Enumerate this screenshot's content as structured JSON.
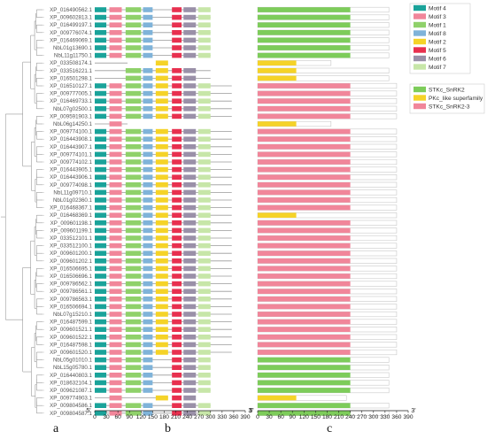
{
  "genes": [
    {
      "name": "XP_016490562.1",
      "motifs": [
        1,
        3,
        4,
        5,
        6,
        7,
        8
      ],
      "domains": [
        "STKc_SnRK2"
      ]
    },
    {
      "name": "XP_009602813.1",
      "motifs": [
        1,
        3,
        4,
        5,
        6,
        7,
        8
      ],
      "domains": [
        "STKc_SnRK2"
      ]
    },
    {
      "name": "XP_016499197.1",
      "motifs": [
        1,
        3,
        4,
        5,
        6,
        7,
        8
      ],
      "domains": [
        "STKc_SnRK2"
      ]
    },
    {
      "name": "XP_009776074.1",
      "motifs": [
        1,
        3,
        4,
        5,
        6,
        7,
        8
      ],
      "domains": [
        "STKc_SnRK2"
      ]
    },
    {
      "name": "XP_016469069.1",
      "motifs": [
        1,
        3,
        4,
        5,
        6,
        7,
        8
      ],
      "domains": [
        "STKc_SnRK2"
      ]
    },
    {
      "name": "NbL01g13690.1",
      "motifs": [
        1,
        3,
        4,
        5,
        6,
        7,
        8
      ],
      "domains": [
        "STKc_SnRK2"
      ]
    },
    {
      "name": "NbL11g11750.1",
      "motifs": [
        1,
        3,
        4,
        5,
        6,
        7,
        8
      ],
      "domains": [
        "STKc_SnRK2"
      ]
    },
    {
      "name": "XP_033508174.1",
      "motifs": [
        2
      ],
      "domains": [
        "PKc_like superfamily"
      ]
    },
    {
      "name": "XP_033516221.1",
      "motifs": [
        1,
        2,
        5,
        6,
        8
      ],
      "domains": [
        "PKc_like superfamily"
      ]
    },
    {
      "name": "XP_016501298.1",
      "motifs": [
        1,
        2,
        5,
        6,
        8
      ],
      "domains": [
        "PKc_like superfamily"
      ]
    },
    {
      "name": "XP_016510127.1",
      "motifs": [
        1,
        2,
        3,
        4,
        5,
        6,
        7,
        8
      ],
      "domains": [
        "STKc_SnRK2-3"
      ]
    },
    {
      "name": "XP_009777005.1",
      "motifs": [
        1,
        2,
        3,
        4,
        5,
        6,
        7,
        8
      ],
      "domains": [
        "STKc_SnRK2-3"
      ]
    },
    {
      "name": "XP_016469733.1",
      "motifs": [
        1,
        2,
        3,
        4,
        5,
        6,
        7,
        8
      ],
      "domains": [
        "STKc_SnRK2-3"
      ]
    },
    {
      "name": "NbL07g02500.1",
      "motifs": [
        1,
        2,
        3,
        4,
        5,
        6,
        7,
        8
      ],
      "domains": [
        "STKc_SnRK2-3"
      ]
    },
    {
      "name": "XP_009591903.1",
      "motifs": [
        1,
        2,
        3,
        4,
        5,
        6,
        7,
        8
      ],
      "domains": [
        "STKc_SnRK2-3"
      ]
    },
    {
      "name": "NbL06g14250.1",
      "motifs": [
        3
      ],
      "domains": [
        "PKc_like superfamily"
      ]
    },
    {
      "name": "XP_009774100.1",
      "motifs": [
        1,
        2,
        3,
        4,
        5,
        6,
        7,
        8
      ],
      "domains": [
        "STKc_SnRK2-3"
      ]
    },
    {
      "name": "XP_016443908.1",
      "motifs": [
        1,
        2,
        3,
        4,
        5,
        6,
        7,
        8
      ],
      "domains": [
        "STKc_SnRK2-3"
      ]
    },
    {
      "name": "XP_016443907.1",
      "motifs": [
        1,
        2,
        3,
        4,
        5,
        6,
        7,
        8
      ],
      "domains": [
        "STKc_SnRK2-3"
      ]
    },
    {
      "name": "XP_009774101.1",
      "motifs": [
        1,
        2,
        3,
        4,
        5,
        6,
        7,
        8
      ],
      "domains": [
        "STKc_SnRK2-3"
      ]
    },
    {
      "name": "XP_009774102.1",
      "motifs": [
        1,
        2,
        3,
        4,
        5,
        6,
        7,
        8
      ],
      "domains": [
        "STKc_SnRK2-3"
      ]
    },
    {
      "name": "XP_016443905.1",
      "motifs": [
        1,
        2,
        3,
        4,
        5,
        6,
        7,
        8
      ],
      "domains": [
        "STKc_SnRK2-3"
      ]
    },
    {
      "name": "XP_016443906.1",
      "motifs": [
        1,
        2,
        3,
        4,
        5,
        6,
        7,
        8
      ],
      "domains": [
        "STKc_SnRK2-3"
      ]
    },
    {
      "name": "XP_009774098.1",
      "motifs": [
        1,
        2,
        3,
        4,
        5,
        6,
        7,
        8
      ],
      "domains": [
        "STKc_SnRK2-3"
      ]
    },
    {
      "name": "NbL11g09710.1",
      "motifs": [
        1,
        2,
        3,
        4,
        5,
        6,
        7,
        8
      ],
      "domains": [
        "STKc_SnRK2-3"
      ]
    },
    {
      "name": "NbL01g02360.1",
      "motifs": [
        1,
        2,
        3,
        4,
        5,
        6,
        7,
        8
      ],
      "domains": [
        "STKc_SnRK2-3"
      ]
    },
    {
      "name": "XP_016468367.1",
      "motifs": [
        1,
        2,
        3,
        4,
        5,
        6,
        7,
        8
      ],
      "domains": [
        "STKc_SnRK2-3"
      ]
    },
    {
      "name": "XP_016468369.1",
      "motifs": [
        1,
        2,
        3,
        4,
        5,
        6,
        7,
        8
      ],
      "domains": [
        "PKc_like superfamily"
      ]
    },
    {
      "name": "XP_009601198.1",
      "motifs": [
        1,
        2,
        3,
        4,
        5,
        6,
        7,
        8
      ],
      "domains": [
        "STKc_SnRK2-3"
      ]
    },
    {
      "name": "XP_009601199.1",
      "motifs": [
        1,
        2,
        3,
        4,
        5,
        6,
        7,
        8
      ],
      "domains": [
        "STKc_SnRK2-3"
      ]
    },
    {
      "name": "XP_033512101.1",
      "motifs": [
        1,
        2,
        3,
        4,
        5,
        6,
        7,
        8
      ],
      "domains": [
        "STKc_SnRK2-3"
      ]
    },
    {
      "name": "XP_033512100.1",
      "motifs": [
        1,
        2,
        3,
        4,
        5,
        6,
        7,
        8
      ],
      "domains": [
        "STKc_SnRK2-3"
      ]
    },
    {
      "name": "XP_009601200.1",
      "motifs": [
        1,
        2,
        3,
        4,
        5,
        6,
        7,
        8
      ],
      "domains": [
        "STKc_SnRK2-3"
      ]
    },
    {
      "name": "XP_009601202.1",
      "motifs": [
        1,
        2,
        3,
        4,
        5,
        6,
        7,
        8
      ],
      "domains": [
        "STKc_SnRK2-3"
      ]
    },
    {
      "name": "XP_016506695.1",
      "motifs": [
        1,
        2,
        3,
        4,
        5,
        6,
        7,
        8
      ],
      "domains": [
        "STKc_SnRK2-3"
      ]
    },
    {
      "name": "XP_016506696.1",
      "motifs": [
        1,
        2,
        3,
        4,
        5,
        6,
        7,
        8
      ],
      "domains": [
        "STKc_SnRK2-3"
      ]
    },
    {
      "name": "XP_009786562.1",
      "motifs": [
        1,
        2,
        3,
        4,
        5,
        6,
        7,
        8
      ],
      "domains": [
        "STKc_SnRK2-3"
      ]
    },
    {
      "name": "XP_009786561.1",
      "motifs": [
        1,
        2,
        3,
        4,
        5,
        6,
        7,
        8
      ],
      "domains": [
        "STKc_SnRK2-3"
      ]
    },
    {
      "name": "XP_009786563.1",
      "motifs": [
        1,
        2,
        3,
        4,
        5,
        6,
        7,
        8
      ],
      "domains": [
        "STKc_SnRK2-3"
      ]
    },
    {
      "name": "XP_016506694.1",
      "motifs": [
        1,
        2,
        3,
        4,
        5,
        6,
        7,
        8
      ],
      "domains": [
        "STKc_SnRK2-3"
      ]
    },
    {
      "name": "NbL07g15210.1",
      "motifs": [
        1,
        2,
        3,
        4,
        5,
        6,
        7,
        8
      ],
      "domains": [
        "STKc_SnRK2-3"
      ]
    },
    {
      "name": "XP_016487599.1",
      "motifs": [
        1,
        2,
        3,
        4,
        5,
        6,
        7,
        8
      ],
      "domains": [
        "STKc_SnRK2-3"
      ]
    },
    {
      "name": "XP_009601521.1",
      "motifs": [
        1,
        2,
        3,
        4,
        5,
        6,
        7,
        8
      ],
      "domains": [
        "STKc_SnRK2-3"
      ]
    },
    {
      "name": "XP_009601522.1",
      "motifs": [
        1,
        2,
        3,
        4,
        5,
        6,
        7,
        8
      ],
      "domains": [
        "STKc_SnRK2-3"
      ]
    },
    {
      "name": "XP_016487598.1",
      "motifs": [
        1,
        2,
        3,
        4,
        5,
        6,
        7,
        8
      ],
      "domains": [
        "STKc_SnRK2-3"
      ]
    },
    {
      "name": "XP_009601520.1",
      "motifs": [
        1,
        2,
        3,
        4,
        5,
        6,
        7,
        8
      ],
      "domains": [
        "STKc_SnRK2-3"
      ]
    },
    {
      "name": "NbL05g01010.1",
      "motifs": [
        1,
        3,
        4,
        5,
        6,
        7,
        8
      ],
      "domains": [
        "STKc_SnRK2"
      ]
    },
    {
      "name": "NbL15g05780.1",
      "motifs": [
        1,
        3,
        4,
        5,
        6,
        7,
        8
      ],
      "domains": [
        "STKc_SnRK2"
      ]
    },
    {
      "name": "XP_016440803.1",
      "motifs": [
        1,
        3,
        4,
        5,
        6,
        7,
        8
      ],
      "domains": [
        "STKc_SnRK2"
      ]
    },
    {
      "name": "XP_018632104.1",
      "motifs": [
        1,
        3,
        4,
        5,
        6,
        7,
        8
      ],
      "domains": [
        "STKc_SnRK2"
      ]
    },
    {
      "name": "XP_009621087.1",
      "motifs": [
        1,
        3,
        4,
        5,
        6,
        7,
        8
      ],
      "domains": [
        "STKc_SnRK2"
      ]
    },
    {
      "name": "XP_009774903.1",
      "motifs": [
        2,
        3,
        5,
        6
      ],
      "domains": [
        "PKc_like superfamily"
      ]
    },
    {
      "name": "XP_009804586.1",
      "motifs": [
        1,
        3,
        4,
        5,
        6,
        7,
        8
      ],
      "domains": [
        "STKc_SnRK2"
      ]
    },
    {
      "name": "XP_009804587.1",
      "motifs": [
        1,
        3,
        4,
        5,
        6,
        7,
        8
      ],
      "domains": [
        "STKc_SnRK2"
      ]
    }
  ],
  "motif_legend": [
    {
      "label": "Motif 4",
      "color": "#1aa39a"
    },
    {
      "label": "Motif 3",
      "color": "#f1869a"
    },
    {
      "label": "Motif 1",
      "color": "#8fd16a"
    },
    {
      "label": "Motif 8",
      "color": "#7fb3d9"
    },
    {
      "label": "Motif 2",
      "color": "#f5d328"
    },
    {
      "label": "Motif 5",
      "color": "#e8304f"
    },
    {
      "label": "Motif 6",
      "color": "#9a90a8"
    },
    {
      "label": "Motif 7",
      "color": "#c7e6a8"
    }
  ],
  "domain_legend": [
    {
      "label": "STKc_SnRK2",
      "color": "#7dcc5a"
    },
    {
      "label": "PKc_like superfamily",
      "color": "#f5d328"
    },
    {
      "label": "STKc_SnRK2-3",
      "color": "#f1869a"
    }
  ],
  "axis_ticks": [
    "0",
    "30",
    "60",
    "90",
    "120",
    "150",
    "180",
    "210",
    "240",
    "270",
    "300",
    "330",
    "360",
    "390"
  ],
  "axis_c_ticks": [
    "0",
    "30",
    "60",
    "90",
    "120",
    "150",
    "180",
    "210",
    "240",
    "270",
    "300",
    "330",
    "360",
    "390"
  ],
  "end_labels": {
    "five": "5'",
    "three": "3'"
  },
  "panel_labels": {
    "a": "a",
    "b": "b",
    "c": "c"
  }
}
